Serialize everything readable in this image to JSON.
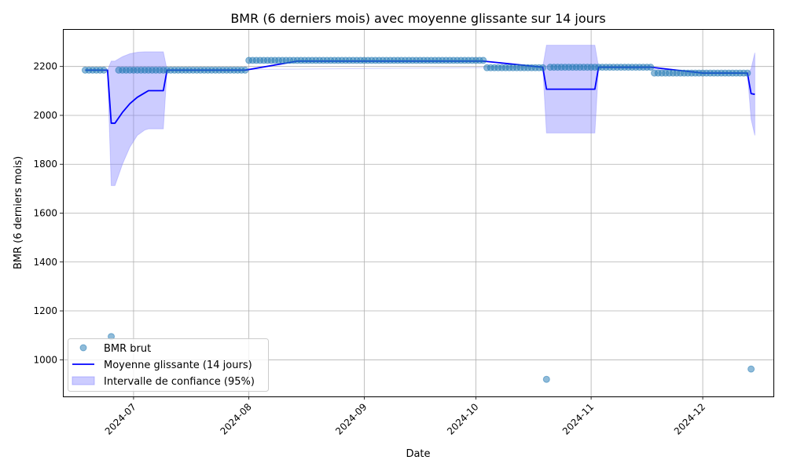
{
  "chart_data": {
    "type": "line",
    "title": "BMR (6 derniers mois) avec moyenne glissante sur 14 jours",
    "xlabel": "Date",
    "ylabel": "BMR (6 derniers mois)",
    "x_tick_labels": [
      "2024-07",
      "2024-08",
      "2024-09",
      "2024-10",
      "2024-11",
      "2024-12"
    ],
    "y_tick_labels": [
      "1000",
      "1200",
      "1400",
      "1600",
      "1800",
      "2000",
      "2200"
    ],
    "y_ticks": [
      1000,
      1200,
      1400,
      1600,
      1800,
      2000,
      2200
    ],
    "xlim": [
      "2024-06-12",
      "2024-12-20"
    ],
    "ylim": [
      850,
      2350
    ],
    "grid": true,
    "legend_position": "lower-left",
    "legend": [
      "BMR brut",
      "Moyenne glissante (14 jours)",
      "Intervalle de confiance (95%)"
    ],
    "colors": {
      "scatter": "#1f77b4",
      "rolling_mean": "#0000ff",
      "band": "#8080ff",
      "grid": "#b0b0b0"
    },
    "raw_segments": [
      {
        "from": "2024-06-18",
        "to": "2024-06-23",
        "value": 2185
      },
      {
        "from": "2024-06-27",
        "to": "2024-07-31",
        "value": 2185
      },
      {
        "from": "2024-08-01",
        "to": "2024-10-03",
        "value": 2225
      },
      {
        "from": "2024-10-04",
        "to": "2024-10-19",
        "value": 2195
      },
      {
        "from": "2024-10-21",
        "to": "2024-11-17",
        "value": 2197
      },
      {
        "from": "2024-11-18",
        "to": "2024-12-13",
        "value": 2173
      }
    ],
    "raw_outliers": [
      {
        "date": "2024-06-25",
        "value": 1095
      },
      {
        "date": "2024-10-20",
        "value": 920
      },
      {
        "date": "2024-12-14",
        "value": 962
      }
    ],
    "rolling_mean": [
      {
        "date": "2024-06-18",
        "value": 2185
      },
      {
        "date": "2024-06-24",
        "value": 2185
      },
      {
        "date": "2024-06-25",
        "value": 1968
      },
      {
        "date": "2024-06-26",
        "value": 1968
      },
      {
        "date": "2024-06-28",
        "value": 2012
      },
      {
        "date": "2024-06-30",
        "value": 2048
      },
      {
        "date": "2024-07-02",
        "value": 2074
      },
      {
        "date": "2024-07-04",
        "value": 2092
      },
      {
        "date": "2024-07-05",
        "value": 2101
      },
      {
        "date": "2024-07-09",
        "value": 2101
      },
      {
        "date": "2024-07-10",
        "value": 2185
      },
      {
        "date": "2024-07-31",
        "value": 2185
      },
      {
        "date": "2024-08-14",
        "value": 2222
      },
      {
        "date": "2024-10-03",
        "value": 2222
      },
      {
        "date": "2024-10-19",
        "value": 2197
      },
      {
        "date": "2024-10-20",
        "value": 2107
      },
      {
        "date": "2024-11-02",
        "value": 2107
      },
      {
        "date": "2024-11-03",
        "value": 2197
      },
      {
        "date": "2024-11-17",
        "value": 2197
      },
      {
        "date": "2024-12-01",
        "value": 2173
      },
      {
        "date": "2024-12-13",
        "value": 2173
      },
      {
        "date": "2024-12-14",
        "value": 2089
      },
      {
        "date": "2024-12-15",
        "value": 2086
      }
    ],
    "confidence_band": [
      {
        "date": "2024-06-24",
        "lower": 2185,
        "upper": 2185
      },
      {
        "date": "2024-06-25",
        "lower": 1713,
        "upper": 2222
      },
      {
        "date": "2024-06-26",
        "lower": 1713,
        "upper": 2222
      },
      {
        "date": "2024-06-28",
        "lower": 1800,
        "upper": 2240
      },
      {
        "date": "2024-06-30",
        "lower": 1870,
        "upper": 2252
      },
      {
        "date": "2024-07-02",
        "lower": 1918,
        "upper": 2258
      },
      {
        "date": "2024-07-04",
        "lower": 1940,
        "upper": 2260
      },
      {
        "date": "2024-07-05",
        "lower": 1945,
        "upper": 2260
      },
      {
        "date": "2024-07-09",
        "lower": 1945,
        "upper": 2260
      },
      {
        "date": "2024-07-10",
        "lower": 2185,
        "upper": 2185
      },
      {
        "date": "2024-10-19",
        "lower": 2197,
        "upper": 2197
      },
      {
        "date": "2024-10-20",
        "lower": 1928,
        "upper": 2287
      },
      {
        "date": "2024-11-02",
        "lower": 1928,
        "upper": 2287
      },
      {
        "date": "2024-11-03",
        "lower": 2197,
        "upper": 2197
      },
      {
        "date": "2024-12-13",
        "lower": 2173,
        "upper": 2173
      },
      {
        "date": "2024-12-14",
        "lower": 1985,
        "upper": 2190
      },
      {
        "date": "2024-12-15",
        "lower": 1918,
        "upper": 2256
      }
    ]
  }
}
